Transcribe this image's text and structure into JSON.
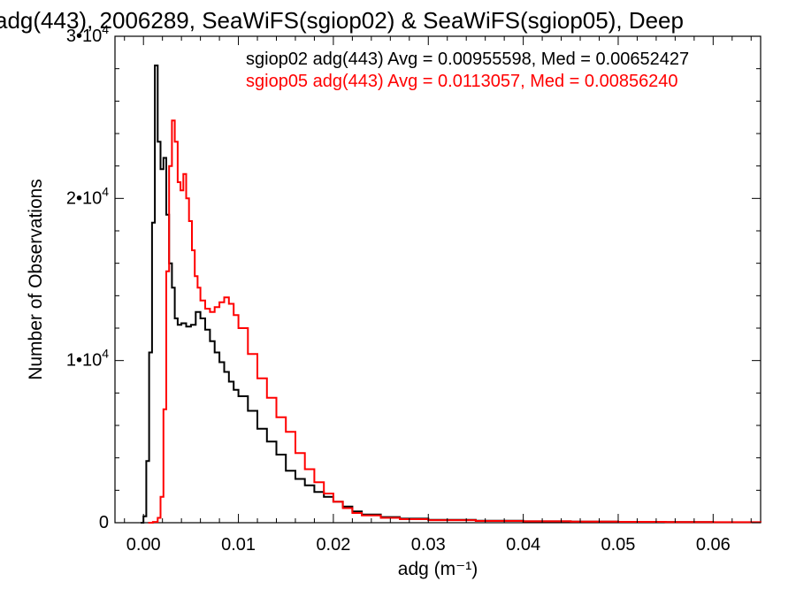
{
  "chart_data": {
    "type": "line",
    "title": "adg(443), 2006289, SeaWiFS(sgiop02) & SeaWiFS(sgiop05), Deep",
    "xlabel": "adg (m⁻¹)",
    "ylabel": "Number of Observations",
    "xlim": [
      -0.003,
      0.065
    ],
    "ylim": [
      0,
      30000
    ],
    "x_ticks": [
      0.0,
      0.01,
      0.02,
      0.03,
      0.04,
      0.05,
      0.06
    ],
    "x_tick_labels": [
      "0.00",
      "0.01",
      "0.02",
      "0.03",
      "0.04",
      "0.05",
      "0.06"
    ],
    "y_ticks": [
      0,
      10000,
      20000,
      30000
    ],
    "y_tick_labels": [
      {
        "base": "0",
        "exp": ""
      },
      {
        "base": "1•10",
        "exp": "4"
      },
      {
        "base": "2•10",
        "exp": "4"
      },
      {
        "base": "3•10",
        "exp": "4"
      }
    ],
    "grid": false,
    "legend_placement": "top-right",
    "series": [
      {
        "name": "sgiop02 adg(443) Avg = 0.00955598, Med = 0.00652427",
        "color": "#000000",
        "x": [
          -0.0003,
          0.0,
          0.0003,
          0.0006,
          0.0009,
          0.0012,
          0.0015,
          0.0018,
          0.0021,
          0.0024,
          0.0027,
          0.003,
          0.0033,
          0.0036,
          0.004,
          0.0045,
          0.005,
          0.0055,
          0.006,
          0.0065,
          0.007,
          0.0075,
          0.008,
          0.0085,
          0.009,
          0.0095,
          0.01,
          0.011,
          0.012,
          0.013,
          0.014,
          0.015,
          0.016,
          0.017,
          0.018,
          0.019,
          0.02,
          0.021,
          0.022,
          0.023,
          0.025,
          0.027,
          0.03,
          0.035,
          0.04,
          0.045,
          0.05,
          0.055,
          0.06,
          0.065
        ],
        "values": [
          0,
          400,
          3800,
          10500,
          18500,
          28200,
          23500,
          21800,
          22500,
          19000,
          16000,
          14500,
          12600,
          12200,
          12300,
          12100,
          12200,
          13000,
          12600,
          11900,
          11200,
          10500,
          9900,
          9300,
          8700,
          8200,
          7800,
          6900,
          5800,
          5000,
          4200,
          3200,
          2700,
          2300,
          1900,
          1600,
          1300,
          1000,
          700,
          500,
          350,
          250,
          180,
          120,
          90,
          70,
          50,
          40,
          30,
          20
        ]
      },
      {
        "name": "sgiop05 adg(443) Avg = 0.0113057, Med = 0.00856240",
        "color": "#ff0000",
        "x": [
          0.0005,
          0.001,
          0.0015,
          0.0018,
          0.0021,
          0.0024,
          0.0027,
          0.003,
          0.0033,
          0.0036,
          0.0039,
          0.0042,
          0.0045,
          0.0048,
          0.0051,
          0.0054,
          0.0057,
          0.006,
          0.0065,
          0.007,
          0.0075,
          0.008,
          0.0085,
          0.009,
          0.0095,
          0.01,
          0.011,
          0.012,
          0.013,
          0.014,
          0.015,
          0.016,
          0.017,
          0.018,
          0.019,
          0.02,
          0.021,
          0.022,
          0.023,
          0.025,
          0.027,
          0.03,
          0.035,
          0.04,
          0.045,
          0.05,
          0.055,
          0.06,
          0.065
        ],
        "values": [
          0,
          50,
          300,
          1600,
          7000,
          15500,
          22000,
          24800,
          23500,
          21000,
          20500,
          21500,
          20000,
          18600,
          16800,
          15200,
          14500,
          13700,
          13200,
          13000,
          13300,
          13600,
          13900,
          13500,
          12800,
          12000,
          10400,
          8900,
          7700,
          6500,
          5600,
          4300,
          3300,
          2500,
          1800,
          1300,
          900,
          600,
          450,
          300,
          220,
          160,
          110,
          90,
          70,
          55,
          45,
          35,
          25
        ]
      }
    ]
  }
}
